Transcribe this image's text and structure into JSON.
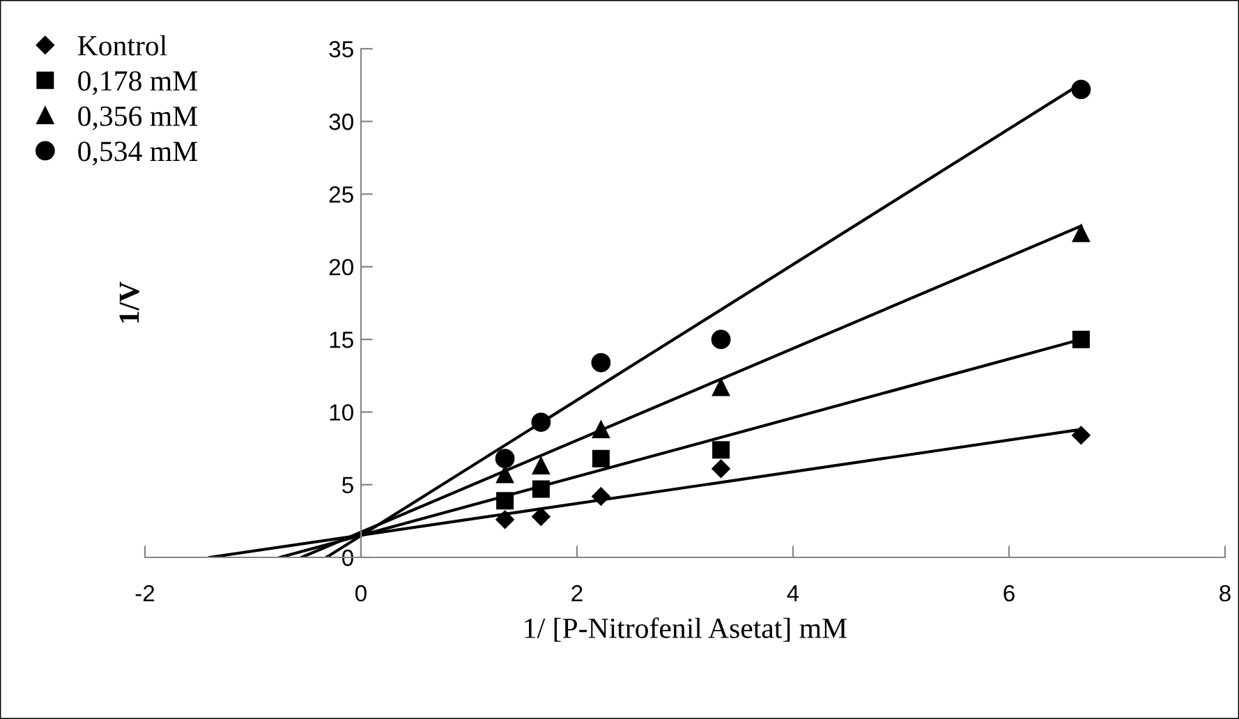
{
  "chart_data": {
    "type": "scatter",
    "xlabel": "1/ [P-Nitrofenil Asetat] mM",
    "ylabel": "1/V",
    "x": [
      1.333,
      1.667,
      2.222,
      3.333,
      6.667
    ],
    "xlim": [
      -2,
      8
    ],
    "xticks": [
      -2,
      0,
      2,
      4,
      6,
      8
    ],
    "ylim": [
      0,
      35
    ],
    "yticks": [
      0,
      5,
      10,
      15,
      20,
      25,
      30,
      35
    ],
    "grid": false,
    "legend": "top left",
    "series": [
      {
        "name": "Kontrol",
        "color": "#000000",
        "marker": "diamond",
        "values": [
          2.6,
          2.8,
          4.2,
          6.1,
          8.4
        ]
      },
      {
        "name": "0,178 mM",
        "color": "#000000",
        "marker": "square",
        "values": [
          3.9,
          4.7,
          6.8,
          7.4,
          15.0
        ]
      },
      {
        "name": "0,356 mM",
        "color": "#000000",
        "marker": "triangle",
        "values": [
          5.7,
          6.3,
          8.8,
          11.7,
          22.3
        ]
      },
      {
        "name": "0,534 mM",
        "color": "#000000",
        "marker": "circle",
        "values": [
          6.8,
          9.3,
          13.4,
          15.0,
          32.2
        ]
      },
      {
        "type": "line",
        "color": "#000000",
        "x": [
          -1.4,
          6.667
        ],
        "values": [
          0,
          8.8
        ]
      },
      {
        "type": "line",
        "color": "#000000",
        "x": [
          -0.75,
          6.667
        ],
        "values": [
          0,
          15.0
        ]
      },
      {
        "type": "line",
        "color": "#000000",
        "x": [
          -0.55,
          6.667
        ],
        "values": [
          0,
          22.8
        ]
      },
      {
        "type": "line",
        "color": "#000000",
        "x": [
          -0.32,
          6.667
        ],
        "values": [
          0,
          32.6
        ]
      }
    ]
  }
}
